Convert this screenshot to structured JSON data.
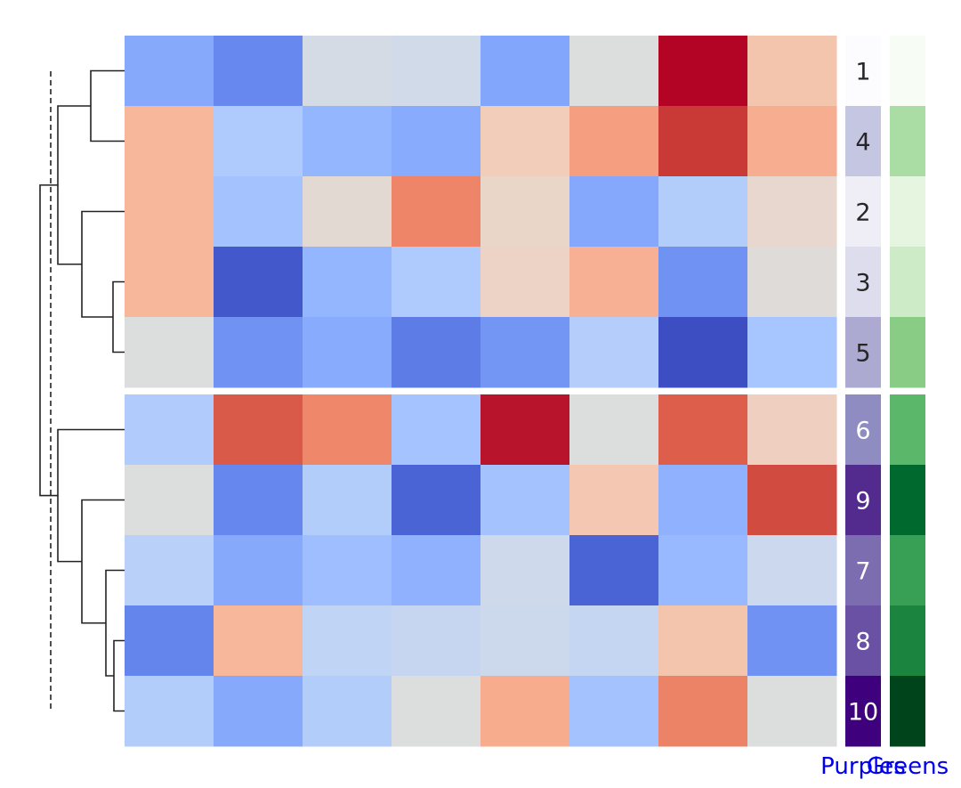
{
  "chart_data": {
    "type": "heatmap",
    "title": "",
    "xlabel": "",
    "ylabel": "",
    "grid": false,
    "row_labels": [
      "1",
      "4",
      "2",
      "3",
      "5",
      "6",
      "9",
      "7",
      "8",
      "10"
    ],
    "row_split_after": 5,
    "column_count": 8,
    "matrix_colors": [
      [
        "#86a9fc",
        "#6788ee",
        "#d5dbe5",
        "#d1dae9",
        "#82a6fb",
        "#dcdddd",
        "#b40426",
        "#f4c5ad"
      ],
      [
        "#f6b79a",
        "#afcafc",
        "#94b6ff",
        "#88abfd",
        "#f1cdba",
        "#f59f80",
        "#c93a36",
        "#f7ad8f"
      ],
      [
        "#f6b79a",
        "#a3c2fe",
        "#e3d9d3",
        "#ee8468",
        "#ead5c9",
        "#85a8fc",
        "#b3cdfb",
        "#e7d7ce"
      ],
      [
        "#f6b79a",
        "#4358cb",
        "#94b6ff",
        "#afcafc",
        "#ecd3c5",
        "#f7b093",
        "#6f92f3",
        "#dfdbd9"
      ],
      [
        "#dcdddd",
        "#6f92f3",
        "#88abfd",
        "#5d7ce6",
        "#7396f5",
        "#b5cdfa",
        "#3c4ec2",
        "#a7c5fe"
      ],
      [
        "#b0cbfc",
        "#da5a49",
        "#ef886b",
        "#a5c3fe",
        "#b8142b",
        "#dcdddd",
        "#dd5f4b",
        "#efcfbf"
      ],
      [
        "#dcdddd",
        "#6687ed",
        "#b3cdfb",
        "#4b64d5",
        "#a3c2fe",
        "#f3c7b1",
        "#90b2fe",
        "#d24b40"
      ],
      [
        "#b9d0f9",
        "#86a9fc",
        "#9ebeff",
        "#8fb1fe",
        "#cedaeb",
        "#4b64d5",
        "#98b9ff",
        "#cbd8ee"
      ],
      [
        "#6485ec",
        "#f6b79a",
        "#c0d4f5",
        "#c6d6f1",
        "#ccd9ed",
        "#c5d6f2",
        "#f4c5ad",
        "#6f92f3"
      ],
      [
        "#b3cdfb",
        "#86a9fc",
        "#b3cdfb",
        "#dcdddd",
        "#f7ac8e",
        "#a3c2fe",
        "#ed8366",
        "#dcdddd"
      ]
    ],
    "annotations": [
      {
        "name": "Purples",
        "colors": [
          "#fcfbfd",
          "#c5c6e1",
          "#efedf5",
          "#dedded",
          "#acaad0",
          "#8e8cc1",
          "#532a8d",
          "#7b6db0",
          "#6a51a3",
          "#3f007d"
        ],
        "label_colors": [
          "#262626",
          "#262626",
          "#262626",
          "#262626",
          "#262626",
          "#ffffff",
          "#ffffff",
          "#ffffff",
          "#ffffff",
          "#ffffff"
        ]
      },
      {
        "name": "Greens",
        "colors": [
          "#f7fcf5",
          "#aadda4",
          "#e5f5e0",
          "#cdebc6",
          "#89cc85",
          "#5bb86a",
          "#006a2e",
          "#38a055",
          "#1b8540",
          "#00441b"
        ]
      }
    ],
    "annotation_label_color": "#0000ee",
    "dendrogram_color": "#222222"
  }
}
